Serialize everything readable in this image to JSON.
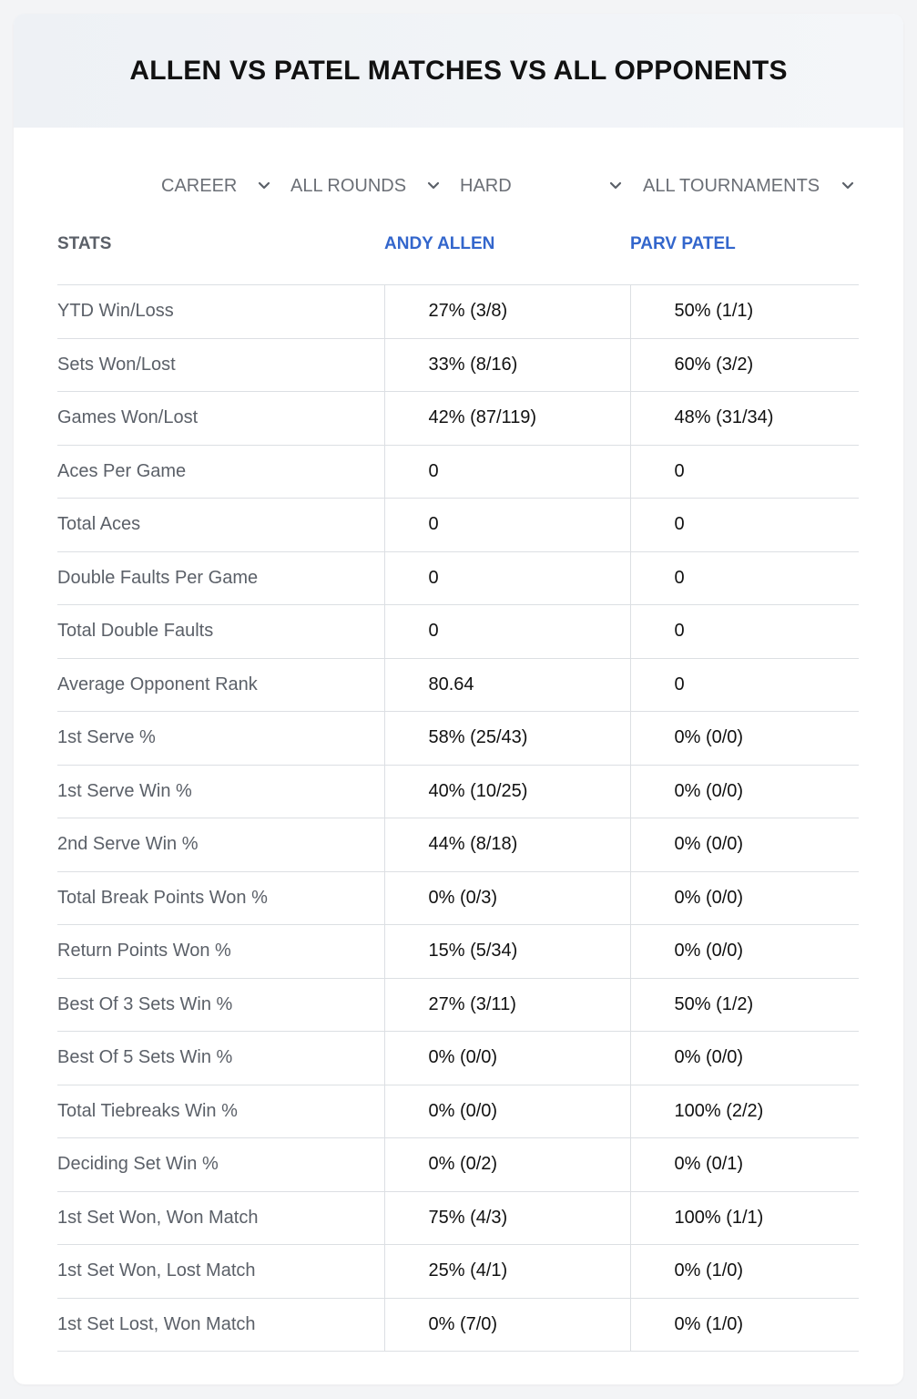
{
  "header": {
    "title": "ALLEN VS PATEL MATCHES VS ALL OPPONENTS"
  },
  "filters": [
    {
      "label": "CAREER"
    },
    {
      "label": "ALL ROUNDS"
    },
    {
      "label": "HARD"
    },
    {
      "label": "ALL TOURNAMENTS"
    }
  ],
  "columns": {
    "stats": "STATS",
    "player1": "ANDY ALLEN",
    "player2": "PARV PATEL"
  },
  "colors": {
    "player_link": "#3366cc",
    "label_text": "#5b6068",
    "value_text": "#111111",
    "divider": "#dcdfe3"
  },
  "icons": {
    "filter_chevron": "chevron-down-icon"
  },
  "rows": [
    {
      "label": "YTD Win/Loss",
      "p1": "27% (3/8)",
      "p2": "50% (1/1)"
    },
    {
      "label": "Sets Won/Lost",
      "p1": "33% (8/16)",
      "p2": "60% (3/2)"
    },
    {
      "label": "Games Won/Lost",
      "p1": "42% (87/119)",
      "p2": "48% (31/34)"
    },
    {
      "label": "Aces Per Game",
      "p1": "0",
      "p2": "0"
    },
    {
      "label": "Total Aces",
      "p1": "0",
      "p2": "0"
    },
    {
      "label": "Double Faults Per Game",
      "p1": "0",
      "p2": "0"
    },
    {
      "label": "Total Double Faults",
      "p1": "0",
      "p2": "0"
    },
    {
      "label": "Average Opponent Rank",
      "p1": "80.64",
      "p2": "0"
    },
    {
      "label": "1st Serve %",
      "p1": "58% (25/43)",
      "p2": "0% (0/0)"
    },
    {
      "label": "1st Serve Win %",
      "p1": "40% (10/25)",
      "p2": "0% (0/0)"
    },
    {
      "label": "2nd Serve Win %",
      "p1": "44% (8/18)",
      "p2": "0% (0/0)"
    },
    {
      "label": "Total Break Points Won %",
      "p1": "0% (0/3)",
      "p2": "0% (0/0)"
    },
    {
      "label": "Return Points Won %",
      "p1": "15% (5/34)",
      "p2": "0% (0/0)"
    },
    {
      "label": "Best Of 3 Sets Win %",
      "p1": "27% (3/11)",
      "p2": "50% (1/2)"
    },
    {
      "label": "Best Of 5 Sets Win %",
      "p1": "0% (0/0)",
      "p2": "0% (0/0)"
    },
    {
      "label": "Total Tiebreaks Win %",
      "p1": "0% (0/0)",
      "p2": "100% (2/2)"
    },
    {
      "label": "Deciding Set Win %",
      "p1": "0% (0/2)",
      "p2": "0% (0/1)"
    },
    {
      "label": "1st Set Won, Won Match",
      "p1": "75% (4/3)",
      "p2": "100% (1/1)"
    },
    {
      "label": "1st Set Won, Lost Match",
      "p1": "25% (4/1)",
      "p2": "0% (1/0)"
    },
    {
      "label": "1st Set Lost, Won Match",
      "p1": "0% (7/0)",
      "p2": "0% (1/0)"
    }
  ]
}
